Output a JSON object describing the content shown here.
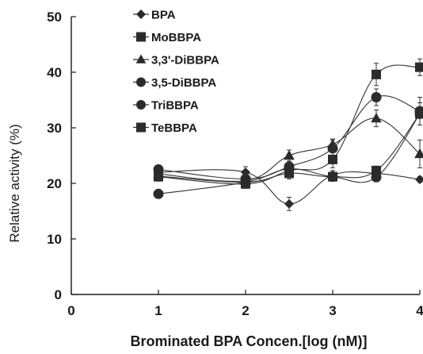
{
  "chart_data": {
    "type": "line",
    "xlabel": "Brominated BPA Concen.[log (nM)]",
    "ylabel": "Relative activity (%)",
    "xlim": [
      0,
      4
    ],
    "ylim": [
      0,
      50
    ],
    "x_ticks": [
      "0",
      "1",
      "2",
      "3",
      "4"
    ],
    "y_ticks": [
      "0",
      "10",
      "20",
      "30",
      "40",
      "50"
    ],
    "legend_position": "top-left",
    "grid": false,
    "x": [
      1,
      2,
      2.5,
      3,
      3.5,
      4
    ],
    "series": [
      {
        "name": "BPA",
        "marker": "diamond",
        "values": [
          22.0,
          22.0,
          16.3,
          21.5,
          21.8,
          20.7
        ],
        "errors": [
          0.5,
          1.0,
          1.2,
          0.8,
          0.8,
          0.5
        ]
      },
      {
        "name": "MoBBPA",
        "marker": "square",
        "values": [
          21.3,
          20.2,
          21.8,
          21.2,
          22.3,
          32.5
        ],
        "errors": [
          0.8,
          0.8,
          1.0,
          0.8,
          0.8,
          2.0
        ]
      },
      {
        "name": "3,3'-DiBBPA",
        "marker": "triangle",
        "values": [
          21.7,
          20.5,
          25.0,
          27.0,
          31.7,
          25.3
        ],
        "errors": [
          0.8,
          0.8,
          1.0,
          1.0,
          1.5,
          2.5
        ]
      },
      {
        "name": "3,5-DiBBPA",
        "marker": "circle",
        "values": [
          22.5,
          20.8,
          23.0,
          26.3,
          35.5,
          33.0
        ],
        "errors": [
          0.8,
          0.8,
          1.0,
          1.5,
          1.5,
          2.5
        ]
      },
      {
        "name": "TriBBPA",
        "marker": "circle",
        "values": [
          18.1,
          20.2,
          22.6,
          21.2,
          21.1,
          32.5
        ],
        "errors": [
          0.6,
          0.8,
          1.0,
          0.8,
          0.8,
          2.0
        ]
      },
      {
        "name": "TeBBPA",
        "marker": "square",
        "values": [
          21.2,
          19.9,
          22.3,
          24.3,
          39.6,
          40.9
        ],
        "errors": [
          0.8,
          0.8,
          1.0,
          1.5,
          2.0,
          1.5
        ]
      }
    ],
    "colors": {
      "line": "#333333",
      "marker": "#2b2b2b",
      "axis": "#1a1a1a"
    }
  }
}
